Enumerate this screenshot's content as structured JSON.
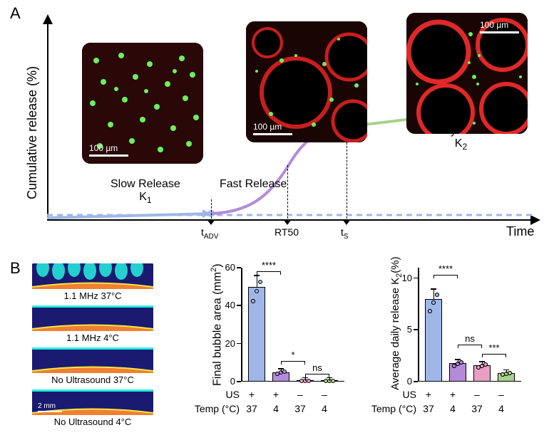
{
  "panelA": {
    "label": "A",
    "y_axis_label": "Cumulative release (%)",
    "x_axis_label": "Time",
    "phases": {
      "slow": {
        "title": "Slow Release",
        "k": "K",
        "ksub": "1"
      },
      "fast": {
        "title": "Fast Release"
      },
      "steady": {
        "title": "Steady Release",
        "k": "K",
        "ksub": "2"
      }
    },
    "ticks": {
      "tadv_pre": "t",
      "tadv_sub": "ADV",
      "rt50": "RT50",
      "ts_pre": "t",
      "ts_sub": "S"
    },
    "axis_color": "#000000",
    "curve_colors": {
      "slow": "#9fb7e8",
      "fast": "#b38cd9",
      "steady": "#a8d18d",
      "baseline": "#9fb7e8"
    },
    "scale_text": "100 µm",
    "scale_widths": [
      55,
      55,
      55
    ],
    "micro": {
      "bg": "#1a0505",
      "dot_green": "#6cf05c",
      "bubble_red": "#c81e1e"
    }
  },
  "panelB": {
    "label": "B",
    "us_images": [
      {
        "label": "1.1 MHz 37°C",
        "has_bubbles": true,
        "scale": ""
      },
      {
        "label": "1.1 MHz 4°C",
        "has_bubbles": false,
        "scale": ""
      },
      {
        "label": "No Ultrasound 37°C",
        "has_bubbles": false,
        "scale": ""
      },
      {
        "label": "No Ultrasound 4°C",
        "has_bubbles": false,
        "scale": "2 mm"
      }
    ],
    "chart1": {
      "ylabel_pre": "Final bubble area (mm",
      "ylabel_sup": "2",
      "ylabel_post": ")",
      "yticks": [
        "0",
        "20",
        "40",
        "60"
      ],
      "ymax": 60,
      "bars": [
        {
          "value": 50,
          "color": "#9fb7e8",
          "n_dots": 4
        },
        {
          "value": 5,
          "color": "#b38cd9",
          "n_dots": 4
        },
        {
          "value": 0.3,
          "color": "#e89fc3",
          "n_dots": 3
        },
        {
          "value": 0.3,
          "color": "#a8d18d",
          "n_dots": 3
        }
      ],
      "sig": [
        {
          "text": "****",
          "from": 0,
          "to": 1,
          "y": 58
        },
        {
          "text": "*",
          "from": 1,
          "to": 2,
          "y": 11
        },
        {
          "text": "ns",
          "from": 2,
          "to": 3,
          "y": 4
        }
      ]
    },
    "chart2": {
      "ylabel_pre": "Average daily release K",
      "ylabel_sub": "2",
      "ylabel_post": "(%)",
      "yticks": [
        "0",
        "5",
        "10"
      ],
      "ymax": 11,
      "bars": [
        {
          "value": 8.0,
          "color": "#9fb7e8",
          "n_dots": 8
        },
        {
          "value": 1.8,
          "color": "#b38cd9",
          "n_dots": 8
        },
        {
          "value": 1.6,
          "color": "#e89fc3",
          "n_dots": 6
        },
        {
          "value": 0.8,
          "color": "#a8d18d",
          "n_dots": 7
        }
      ],
      "sig": [
        {
          "text": "****",
          "from": 0,
          "to": 1,
          "y": 10.3
        },
        {
          "text": "ns",
          "from": 1,
          "to": 2,
          "y": 3.6
        },
        {
          "text": "***",
          "from": 2,
          "to": 3,
          "y": 2.7
        }
      ]
    },
    "x_rows": {
      "us_label": "US",
      "temp_label": "Temp (°C)",
      "us_vals": [
        "+",
        "+",
        "–",
        "–"
      ],
      "temp_vals": [
        "37",
        "4",
        "37",
        "4"
      ]
    },
    "colors": {
      "axis": "#000000",
      "us_bg": "#1a1a70",
      "us_cyan": "#26f0e0",
      "us_yellow": "#f5e642",
      "us_orange": "#f08030"
    }
  }
}
